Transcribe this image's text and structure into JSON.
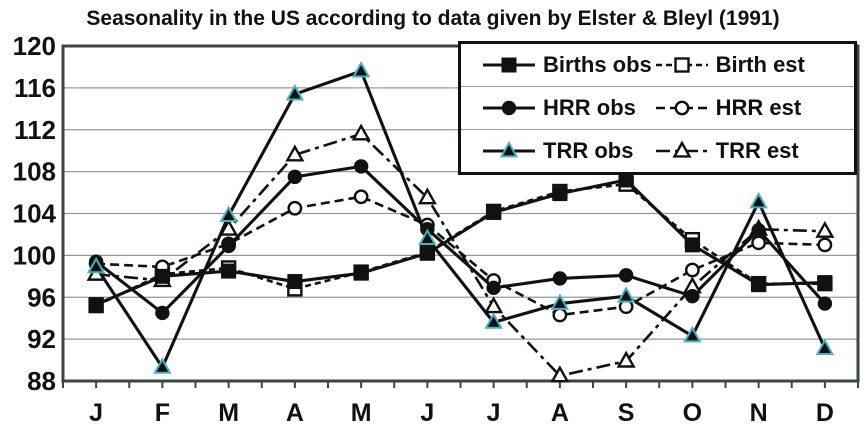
{
  "chart_data": {
    "type": "line",
    "title": "Seasonality in the US according to data given by Elster & Bleyl (1991)",
    "xlabel": "",
    "ylabel": "",
    "x_categories": [
      "J",
      "F",
      "M",
      "A",
      "M",
      "J",
      "J",
      "A",
      "S",
      "O",
      "N",
      "D"
    ],
    "ylim": [
      88,
      120
    ],
    "yticks": [
      120,
      116,
      112,
      108,
      104,
      100,
      96,
      92,
      88
    ],
    "grid": "horizontal",
    "legend_position": "top-right",
    "series": [
      {
        "name": "Births obs",
        "marker": "square",
        "variant": "filled",
        "line": "solid",
        "values": [
          95.3,
          98.0,
          98.5,
          97.5,
          98.3,
          100.2,
          104.1,
          105.9,
          107.2,
          101.0,
          97.2,
          97.4
        ]
      },
      {
        "name": "Birth est",
        "marker": "square",
        "variant": "open",
        "line": "dashed-short",
        "values": [
          95.2,
          98.2,
          98.8,
          96.8,
          98.4,
          100.3,
          104.2,
          106.1,
          106.8,
          101.5,
          97.3,
          97.3
        ]
      },
      {
        "name": "HRR obs",
        "marker": "circle",
        "variant": "filled",
        "line": "solid",
        "values": [
          99.4,
          94.5,
          100.9,
          107.5,
          108.5,
          102.5,
          96.9,
          97.8,
          98.1,
          96.1,
          102.4,
          95.4
        ]
      },
      {
        "name": "HRR est",
        "marker": "circle",
        "variant": "open",
        "line": "dashed",
        "values": [
          99.2,
          98.9,
          101.1,
          104.5,
          105.6,
          102.9,
          97.6,
          94.3,
          95.1,
          98.6,
          101.2,
          101.0
        ]
      },
      {
        "name": "TRR obs",
        "marker": "triangle",
        "variant": "filled",
        "line": "solid",
        "values": [
          98.9,
          89.3,
          103.8,
          115.4,
          117.6,
          101.6,
          93.6,
          95.4,
          96.1,
          92.3,
          105.1,
          91.1
        ]
      },
      {
        "name": "TRR est",
        "marker": "triangle",
        "variant": "open",
        "line": "dashdot",
        "values": [
          98.2,
          97.6,
          102.5,
          109.6,
          111.6,
          105.5,
          95.1,
          88.5,
          89.9,
          97.0,
          102.5,
          102.3
        ]
      }
    ],
    "colors": {
      "line": "#111111",
      "triangle_edge_teal": "#45b2c0",
      "grid": "#8f9a9b",
      "axis": "#3c4444",
      "text": "#111111",
      "background": "#ffffff"
    }
  }
}
